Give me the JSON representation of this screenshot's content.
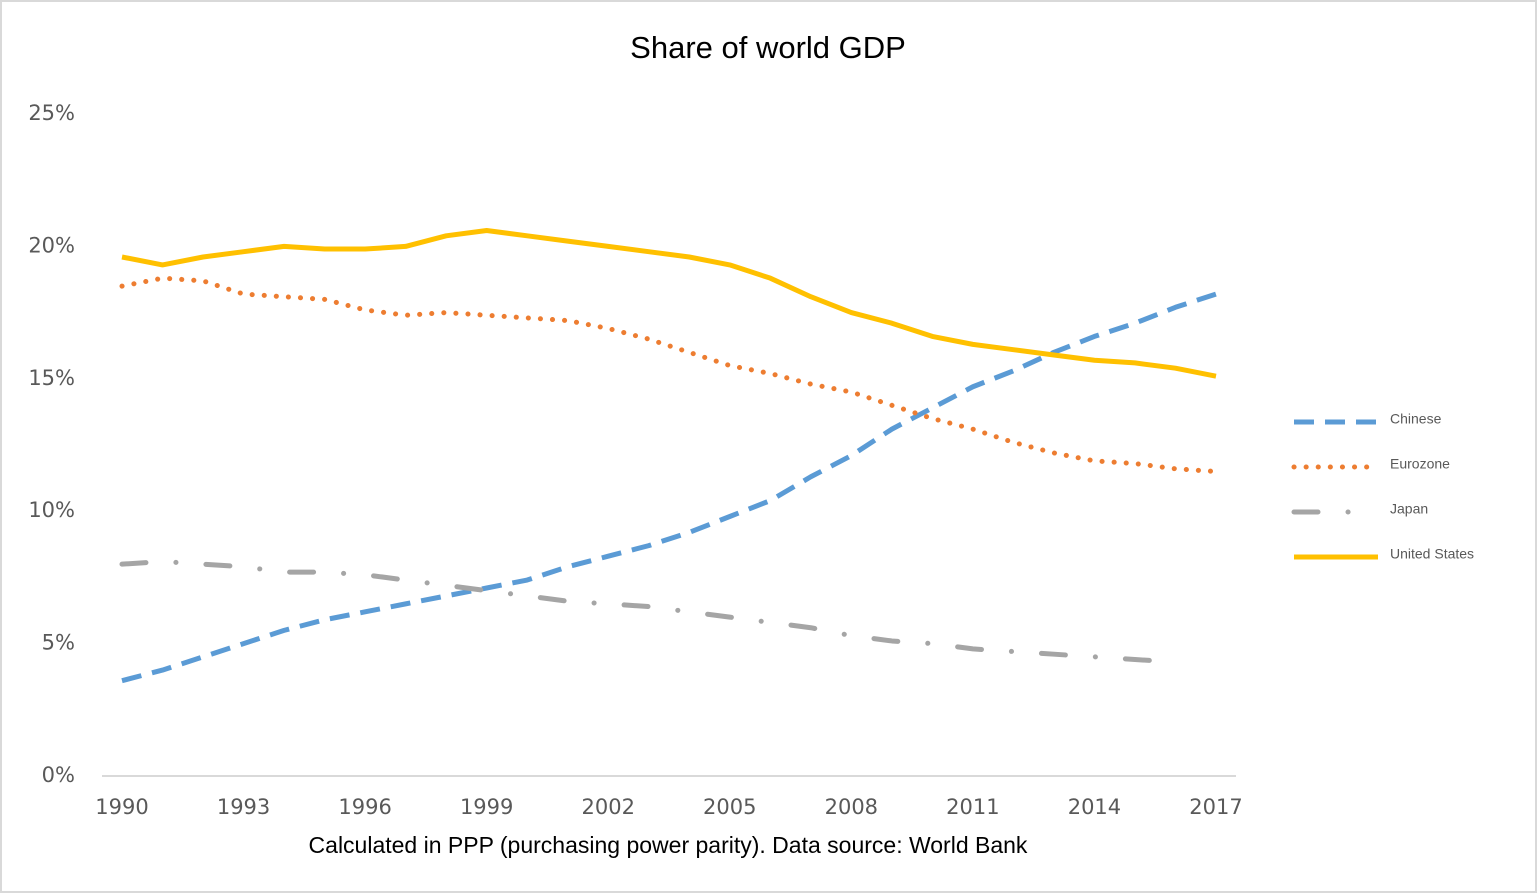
{
  "chart_data": {
    "type": "line",
    "title": "Share of world GDP",
    "note": "Calculated in PPP (purchasing power parity). Data source: World Bank",
    "x": [
      1990,
      1991,
      1992,
      1993,
      1994,
      1995,
      1996,
      1997,
      1998,
      1999,
      2000,
      2001,
      2002,
      2003,
      2004,
      2005,
      2006,
      2007,
      2008,
      2009,
      2010,
      2011,
      2012,
      2013,
      2014,
      2015,
      2016,
      2017
    ],
    "xlim": [
      1990,
      2017
    ],
    "xticks": [
      1990,
      1993,
      1996,
      1999,
      2002,
      2005,
      2008,
      2011,
      2014,
      2017
    ],
    "ylim": [
      0,
      25
    ],
    "yticks": [
      {
        "value": 0,
        "label": "0%"
      },
      {
        "value": 5,
        "label": "5%"
      },
      {
        "value": 10,
        "label": "10%"
      },
      {
        "value": 15,
        "label": "15%"
      },
      {
        "value": 20,
        "label": "20%"
      },
      {
        "value": 25,
        "label": "25%"
      }
    ],
    "grid": false,
    "legend": "right",
    "series": [
      {
        "name": "Chinese",
        "color": "#5b9bd5",
        "linestyle": "dashed",
        "values": [
          3.6,
          4.0,
          4.5,
          5.0,
          5.5,
          5.9,
          6.2,
          6.5,
          6.8,
          7.1,
          7.4,
          7.9,
          8.3,
          8.7,
          9.2,
          9.8,
          10.4,
          11.3,
          12.1,
          13.1,
          13.9,
          14.7,
          15.3,
          16.0,
          16.6,
          17.1,
          17.7,
          18.2
        ]
      },
      {
        "name": "Eurozone",
        "color": "#ed7d31",
        "linestyle": "dotted",
        "values": [
          18.5,
          18.8,
          18.7,
          18.2,
          18.1,
          18.0,
          17.6,
          17.4,
          17.5,
          17.4,
          17.3,
          17.2,
          16.9,
          16.5,
          16.0,
          15.5,
          15.2,
          14.8,
          14.5,
          14.0,
          13.5,
          13.1,
          12.6,
          12.2,
          11.9,
          11.8,
          11.6,
          11.5
        ]
      },
      {
        "name": "Japan",
        "color": "#a5a5a5",
        "linestyle": "dashdot",
        "values": [
          8.0,
          8.1,
          8.0,
          7.9,
          7.7,
          7.7,
          7.6,
          7.4,
          7.2,
          7.0,
          6.8,
          6.6,
          6.5,
          6.4,
          6.2,
          6.0,
          5.8,
          5.6,
          5.3,
          5.1,
          5.0,
          4.8,
          4.7,
          4.6,
          4.5,
          4.4,
          4.3,
          null
        ]
      },
      {
        "name": "United States",
        "color": "#ffc000",
        "linestyle": "solid",
        "values": [
          19.6,
          19.3,
          19.6,
          19.8,
          20.0,
          19.9,
          19.9,
          20.0,
          20.4,
          20.6,
          20.4,
          20.2,
          20.0,
          19.8,
          19.6,
          19.3,
          18.8,
          18.1,
          17.5,
          17.1,
          16.6,
          16.3,
          16.1,
          15.9,
          15.7,
          15.6,
          15.4,
          15.1
        ]
      }
    ]
  }
}
